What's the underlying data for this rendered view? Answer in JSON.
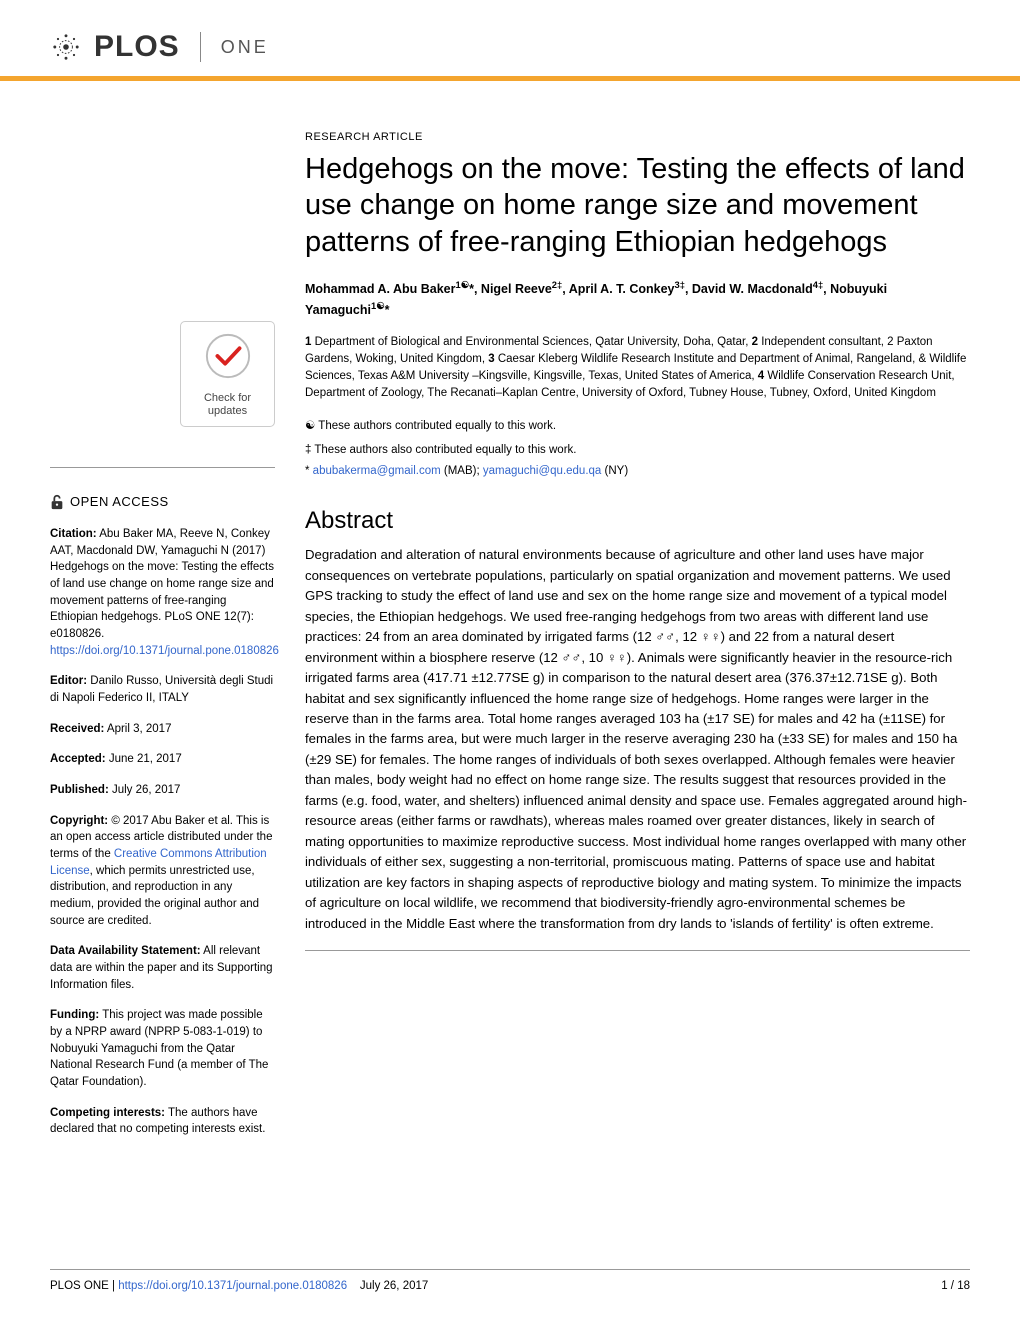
{
  "journal": {
    "logo_text": "PLOS",
    "sub_logo": "ONE",
    "accent_color": "#f4a52e"
  },
  "crossmark": {
    "line1": "Check for",
    "line2": "updates"
  },
  "open_access_label": "OPEN ACCESS",
  "sidebar": {
    "citation_label": "Citation:",
    "citation_text": "Abu Baker MA, Reeve N, Conkey AAT, Macdonald DW, Yamaguchi N (2017) Hedgehogs on the move: Testing the effects of land use change on home range size and movement patterns of free-ranging Ethiopian hedgehogs. PLoS ONE 12(7): e0180826. ",
    "citation_doi_url": "https://doi.org/10.1371/journal.pone.0180826",
    "editor_label": "Editor:",
    "editor_text": "Danilo Russo, Università degli Studi di Napoli Federico II, ITALY",
    "received_label": "Received:",
    "received_text": "April 3, 2017",
    "accepted_label": "Accepted:",
    "accepted_text": "June 21, 2017",
    "published_label": "Published:",
    "published_text": "July 26, 2017",
    "copyright_label": "Copyright:",
    "copyright_text_a": "© 2017 Abu Baker et al. This is an open access article distributed under the terms of the ",
    "cc_link": "Creative Commons Attribution License",
    "copyright_text_b": ", which permits unrestricted use, distribution, and reproduction in any medium, provided the original author and source are credited.",
    "data_label": "Data Availability Statement:",
    "data_text": "All relevant data are within the paper and its Supporting Information files.",
    "funding_label": "Funding:",
    "funding_text": "This project was made possible by a NPRP award (NPRP 5-083-1-019) to Nobuyuki Yamaguchi from the Qatar National Research Fund (a member of The Qatar Foundation).",
    "competing_label": "Competing interests:",
    "competing_text": "The authors have declared that no competing interests exist."
  },
  "article": {
    "type": "RESEARCH ARTICLE",
    "title": "Hedgehogs on the move: Testing the effects of land use change on home range size and movement patterns of free-ranging Ethiopian hedgehogs",
    "authors_html": "Mohammad A. Abu Baker<sup>1☯</sup>*, Nigel Reeve<sup>2‡</sup>, April A. T. Conkey<sup>3‡</sup>, David W. Macdonald<sup>4‡</sup>, Nobuyuki Yamaguchi<sup>1☯</sup>*",
    "affiliations_html": "<b>1</b> Department of Biological and Environmental Sciences, Qatar University, Doha, Qatar, <b>2</b> Independent consultant, 2 Paxton Gardens, Woking, United Kingdom, <b>3</b> Caesar Kleberg Wildlife Research Institute and Department of Animal, Rangeland, & Wildlife Sciences, Texas A&M University –Kingsville, Kingsville, Texas, United States of America, <b>4</b> Wildlife Conservation Research Unit, Department of Zoology, The Recanati–Kaplan Centre, University of Oxford, Tubney House, Tubney, Oxford, United Kingdom",
    "contrib_equal": "☯ These authors contributed equally to this work.",
    "contrib_also": "‡ These authors also contributed equally to this work.",
    "corr_prefix": "* ",
    "corr_email1": "abubakerma@gmail.com",
    "corr_mid1": " (MAB); ",
    "corr_email2": "yamaguchi@qu.edu.qa",
    "corr_mid2": " (NY)",
    "abstract_heading": "Abstract",
    "abstract": "Degradation and alteration of natural environments because of agriculture and other land uses have major consequences on vertebrate populations, particularly on spatial organization and movement patterns. We used GPS tracking to study the effect of land use and sex on the home range size and movement of a typical model species, the Ethiopian hedgehogs. We used free-ranging hedgehogs from two areas with different land use practices: 24 from an area dominated by irrigated farms (12 ♂♂, 12 ♀♀) and 22 from a natural desert environment within a biosphere reserve (12 ♂♂, 10 ♀♀). Animals were significantly heavier in the resource-rich irrigated farms area (417.71 ±12.77SE g) in comparison to the natural desert area (376.37±12.71SE g). Both habitat and sex significantly influenced the home range size of hedgehogs. Home ranges were larger in the reserve than in the farms area. Total home ranges averaged 103 ha (±17 SE) for males and 42 ha (±11SE) for females in the farms area, but were much larger in the reserve averaging 230 ha (±33 SE) for males and 150 ha (±29 SE) for females. The home ranges of individuals of both sexes overlapped. Although females were heavier than males, body weight had no effect on home range size. The results suggest that resources provided in the farms (e.g. food, water, and shelters) influenced animal density and space use. Females aggregated around high-resource areas (either farms or rawdhats), whereas males roamed over greater distances, likely in search of mating opportunities to maximize reproductive success. Most individual home ranges overlapped with many other individuals of either sex, suggesting a non-territorial, promiscuous mating. Patterns of space use and habitat utilization are key factors in shaping aspects of reproductive biology and mating system. To minimize the impacts of agriculture on local wildlife, we recommend that biodiversity-friendly agro-environmental schemes be introduced in the Middle East where the transformation from dry lands to 'islands of fertility' is often extreme."
  },
  "footer": {
    "journal": "PLOS ONE | ",
    "doi_url": "https://doi.org/10.1371/journal.pone.0180826",
    "date": "July 26, 2017",
    "page": "1 / 18"
  }
}
